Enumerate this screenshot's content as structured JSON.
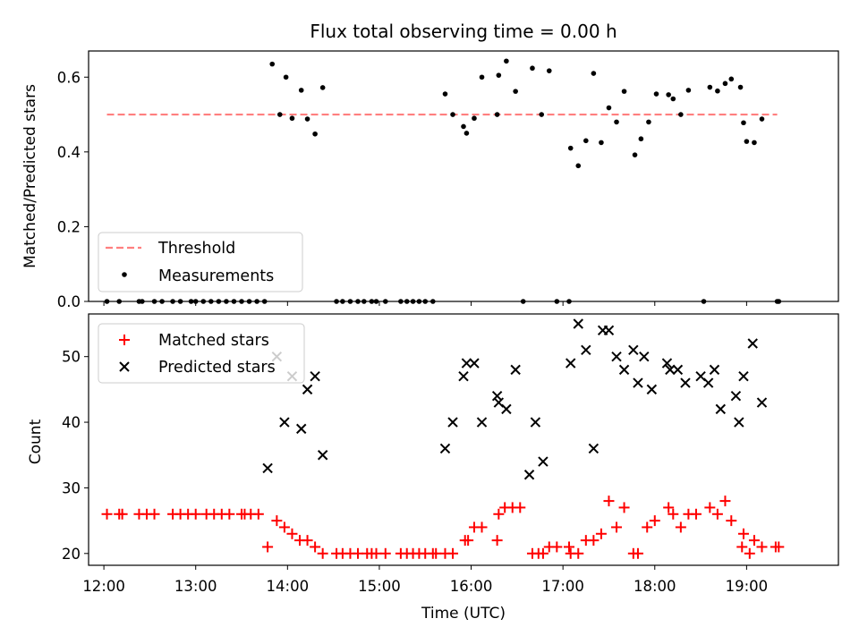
{
  "chart_data": [
    {
      "type": "scatter",
      "title": "Flux total observing time = 0.00 h",
      "xlabel": "",
      "ylabel": "Matched/Predicted stars",
      "xlim": [
        "11:50",
        "20:00"
      ],
      "ylim": [
        0,
        0.67
      ],
      "yticks": [
        "0.0",
        "0.2",
        "0.4",
        "0.6"
      ],
      "grid": false,
      "legend_position": "lower-left",
      "threshold": {
        "name": "Threshold",
        "value": 0.5,
        "x_range": [
          "12:02",
          "19:20"
        ],
        "color": "#ff7f7f"
      },
      "series": [
        {
          "name": "Measurements",
          "marker": "dot",
          "color": "#000000",
          "points": [
            [
              "12:02",
              0.0
            ],
            [
              "12:10",
              0.0
            ],
            [
              "12:23",
              0.0
            ],
            [
              "12:25",
              0.0
            ],
            [
              "12:33",
              0.0
            ],
            [
              "12:38",
              0.0
            ],
            [
              "12:45",
              0.0
            ],
            [
              "12:50",
              0.0
            ],
            [
              "12:57",
              0.0
            ],
            [
              "13:00",
              0.0
            ],
            [
              "13:05",
              0.0
            ],
            [
              "13:10",
              0.0
            ],
            [
              "13:15",
              0.0
            ],
            [
              "13:20",
              0.0
            ],
            [
              "13:25",
              0.0
            ],
            [
              "13:30",
              0.0
            ],
            [
              "13:35",
              0.0
            ],
            [
              "13:40",
              0.0
            ],
            [
              "13:45",
              0.0
            ],
            [
              "13:50",
              0.635
            ],
            [
              "13:55",
              0.5
            ],
            [
              "13:59",
              0.6
            ],
            [
              "14:03",
              0.49
            ],
            [
              "14:09",
              0.565
            ],
            [
              "14:13",
              0.488
            ],
            [
              "14:18",
              0.448
            ],
            [
              "14:23",
              0.572
            ],
            [
              "14:32",
              0.0
            ],
            [
              "14:36",
              0.0
            ],
            [
              "14:41",
              0.0
            ],
            [
              "14:46",
              0.0
            ],
            [
              "14:50",
              0.0
            ],
            [
              "14:55",
              0.0
            ],
            [
              "14:58",
              0.0
            ],
            [
              "15:04",
              0.0
            ],
            [
              "15:14",
              0.0
            ],
            [
              "15:18",
              0.0
            ],
            [
              "15:22",
              0.0
            ],
            [
              "15:26",
              0.0
            ],
            [
              "15:30",
              0.0
            ],
            [
              "15:35",
              0.0
            ],
            [
              "15:43",
              0.555
            ],
            [
              "15:48",
              0.5
            ],
            [
              "15:55",
              0.468
            ],
            [
              "15:57",
              0.45
            ],
            [
              "16:02",
              0.49
            ],
            [
              "16:07",
              0.6
            ],
            [
              "16:17",
              0.5
            ],
            [
              "16:18",
              0.605
            ],
            [
              "16:23",
              0.643
            ],
            [
              "16:29",
              0.562
            ],
            [
              "16:34",
              0.0
            ],
            [
              "16:40",
              0.624
            ],
            [
              "16:46",
              0.5
            ],
            [
              "16:51",
              0.617
            ],
            [
              "16:56",
              0.0
            ],
            [
              "17:04",
              0.0
            ],
            [
              "17:05",
              0.41
            ],
            [
              "17:10",
              0.363
            ],
            [
              "17:15",
              0.43
            ],
            [
              "17:20",
              0.61
            ],
            [
              "17:25",
              0.425
            ],
            [
              "17:30",
              0.518
            ],
            [
              "17:35",
              0.48
            ],
            [
              "17:40",
              0.562
            ],
            [
              "17:47",
              0.392
            ],
            [
              "17:51",
              0.435
            ],
            [
              "17:56",
              0.48
            ],
            [
              "18:01",
              0.555
            ],
            [
              "18:09",
              0.553
            ],
            [
              "18:12",
              0.542
            ],
            [
              "18:17",
              0.5
            ],
            [
              "18:22",
              0.565
            ],
            [
              "18:32",
              0.0
            ],
            [
              "18:36",
              0.573
            ],
            [
              "18:41",
              0.563
            ],
            [
              "18:46",
              0.583
            ],
            [
              "18:50",
              0.595
            ],
            [
              "18:56",
              0.573
            ],
            [
              "18:58",
              0.478
            ],
            [
              "19:00",
              0.428
            ],
            [
              "19:05",
              0.425
            ],
            [
              "19:10",
              0.488
            ],
            [
              "19:20",
              0.0
            ],
            [
              "19:21",
              0.0
            ]
          ]
        }
      ]
    },
    {
      "type": "scatter",
      "title": "",
      "xlabel": "Time (UTC)",
      "ylabel": "Count",
      "xlim": [
        "11:50",
        "20:00"
      ],
      "ylim": [
        18.2,
        56.5
      ],
      "xticks": [
        "12:00",
        "13:00",
        "14:00",
        "15:00",
        "16:00",
        "17:00",
        "18:00",
        "19:00"
      ],
      "yticks": [
        "20",
        "30",
        "40",
        "50"
      ],
      "grid": false,
      "legend_position": "upper-left",
      "series": [
        {
          "name": "Matched stars",
          "marker": "plus",
          "color": "#ff0000",
          "points": [
            [
              "12:02",
              26
            ],
            [
              "12:10",
              26
            ],
            [
              "12:12",
              26
            ],
            [
              "12:23",
              26
            ],
            [
              "12:28",
              26
            ],
            [
              "12:33",
              26
            ],
            [
              "12:45",
              26
            ],
            [
              "12:50",
              26
            ],
            [
              "12:55",
              26
            ],
            [
              "13:00",
              26
            ],
            [
              "13:07",
              26
            ],
            [
              "13:12",
              26
            ],
            [
              "13:17",
              26
            ],
            [
              "13:22",
              26
            ],
            [
              "13:30",
              26
            ],
            [
              "13:32",
              26
            ],
            [
              "13:36",
              26
            ],
            [
              "13:41",
              26
            ],
            [
              "13:47",
              21
            ],
            [
              "13:53",
              25
            ],
            [
              "13:58",
              24
            ],
            [
              "14:03",
              23
            ],
            [
              "14:08",
              22
            ],
            [
              "14:13",
              22
            ],
            [
              "14:18",
              21
            ],
            [
              "14:23",
              20
            ],
            [
              "14:32",
              20
            ],
            [
              "14:36",
              20
            ],
            [
              "14:41",
              20
            ],
            [
              "14:46",
              20
            ],
            [
              "14:52",
              20
            ],
            [
              "14:55",
              20
            ],
            [
              "14:58",
              20
            ],
            [
              "15:04",
              20
            ],
            [
              "15:14",
              20
            ],
            [
              "15:18",
              20
            ],
            [
              "15:22",
              20
            ],
            [
              "15:26",
              20
            ],
            [
              "15:30",
              20
            ],
            [
              "15:35",
              20
            ],
            [
              "15:37",
              20
            ],
            [
              "15:43",
              20
            ],
            [
              "15:48",
              20
            ],
            [
              "15:56",
              22
            ],
            [
              "15:58",
              22
            ],
            [
              "16:02",
              24
            ],
            [
              "16:07",
              24
            ],
            [
              "16:17",
              22
            ],
            [
              "16:18",
              26
            ],
            [
              "16:22",
              27
            ],
            [
              "16:27",
              27
            ],
            [
              "16:32",
              27
            ],
            [
              "16:40",
              20
            ],
            [
              "16:44",
              20
            ],
            [
              "16:47",
              20
            ],
            [
              "16:51",
              21
            ],
            [
              "16:56",
              21
            ],
            [
              "17:04",
              21
            ],
            [
              "17:05",
              20
            ],
            [
              "17:10",
              20
            ],
            [
              "17:15",
              22
            ],
            [
              "17:20",
              22
            ],
            [
              "17:25",
              23
            ],
            [
              "17:30",
              28
            ],
            [
              "17:35",
              24
            ],
            [
              "17:40",
              27
            ],
            [
              "17:46",
              20
            ],
            [
              "17:49",
              20
            ],
            [
              "17:55",
              24
            ],
            [
              "18:00",
              25
            ],
            [
              "18:09",
              27
            ],
            [
              "18:12",
              26
            ],
            [
              "18:17",
              24
            ],
            [
              "18:22",
              26
            ],
            [
              "18:27",
              26
            ],
            [
              "18:36",
              27
            ],
            [
              "18:41",
              26
            ],
            [
              "18:46",
              28
            ],
            [
              "18:50",
              25
            ],
            [
              "18:57",
              21
            ],
            [
              "18:58",
              23
            ],
            [
              "19:02",
              20
            ],
            [
              "19:05",
              22
            ],
            [
              "19:10",
              21
            ],
            [
              "19:19",
              21
            ],
            [
              "19:21",
              21
            ]
          ]
        },
        {
          "name": "Predicted stars",
          "marker": "x",
          "color": "#000000",
          "points": [
            [
              "13:47",
              33
            ],
            [
              "13:53",
              50
            ],
            [
              "13:58",
              40
            ],
            [
              "14:03",
              47
            ],
            [
              "14:09",
              39
            ],
            [
              "14:13",
              45
            ],
            [
              "14:18",
              47
            ],
            [
              "14:23",
              35
            ],
            [
              "15:43",
              36
            ],
            [
              "15:48",
              40
            ],
            [
              "15:55",
              47
            ],
            [
              "15:57",
              49
            ],
            [
              "16:02",
              49
            ],
            [
              "16:07",
              40
            ],
            [
              "16:17",
              44
            ],
            [
              "16:18",
              43
            ],
            [
              "16:23",
              42
            ],
            [
              "16:29",
              48
            ],
            [
              "16:38",
              32
            ],
            [
              "16:42",
              40
            ],
            [
              "16:47",
              34
            ],
            [
              "17:05",
              49
            ],
            [
              "17:10",
              55
            ],
            [
              "17:15",
              51
            ],
            [
              "17:20",
              36
            ],
            [
              "17:26",
              54
            ],
            [
              "17:30",
              54
            ],
            [
              "17:35",
              50
            ],
            [
              "17:40",
              48
            ],
            [
              "17:46",
              51
            ],
            [
              "17:49",
              46
            ],
            [
              "17:53",
              50
            ],
            [
              "17:58",
              45
            ],
            [
              "18:08",
              49
            ],
            [
              "18:10",
              48
            ],
            [
              "18:15",
              48
            ],
            [
              "18:20",
              46
            ],
            [
              "18:30",
              47
            ],
            [
              "18:35",
              46
            ],
            [
              "18:39",
              48
            ],
            [
              "18:43",
              42
            ],
            [
              "18:53",
              44
            ],
            [
              "18:55",
              40
            ],
            [
              "18:58",
              47
            ],
            [
              "19:04",
              52
            ],
            [
              "19:10",
              43
            ]
          ]
        }
      ]
    }
  ]
}
